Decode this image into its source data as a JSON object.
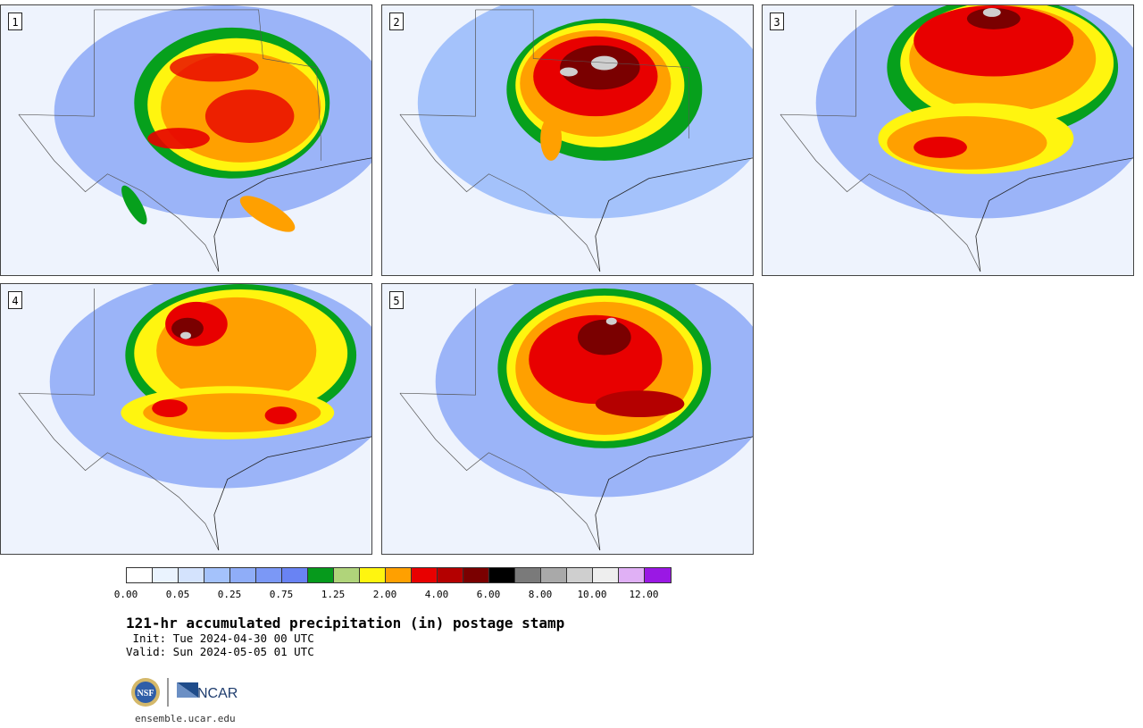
{
  "panels": [
    {
      "label": "1"
    },
    {
      "label": "2"
    },
    {
      "label": "3"
    },
    {
      "label": "4"
    },
    {
      "label": "5"
    }
  ],
  "colorbar": {
    "colors": [
      "#ffffff",
      "#eaf3fe",
      "#d4e3fd",
      "#a4c2fb",
      "#8fadf8",
      "#7b98f6",
      "#6983f3",
      "#069a1c",
      "#b0d47a",
      "#fff50f",
      "#ffa000",
      "#e80000",
      "#b40000",
      "#7a0000",
      "#000000",
      "#7a7a7a",
      "#a9a9a9",
      "#cfcfcf",
      "#eeeeee",
      "#e0b0f5",
      "#9a18e4"
    ],
    "tick_labels": [
      "0.00",
      "0.05",
      "0.25",
      "0.75",
      "1.25",
      "2.00",
      "4.00",
      "6.00",
      "8.00",
      "10.00",
      "12.00"
    ]
  },
  "title": "121-hr accumulated precipitation (in) postage stamp",
  "init_text": " Init: Tue 2024-04-30 00 UTC",
  "valid_text": "Valid: Sun 2024-05-05 01 UTC",
  "logos": {
    "left": "NSF",
    "right": "NCAR"
  },
  "footer_url": "ensemble.ucar.edu"
}
